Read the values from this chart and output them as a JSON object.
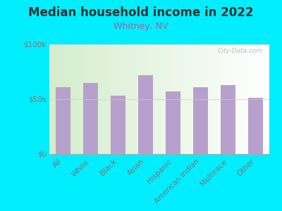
{
  "title": "Median household income in 2022",
  "subtitle": "Whitney, NV",
  "categories": [
    "All",
    "White",
    "Black",
    "Asian",
    "Hispanic",
    "American Indian",
    "Multirace",
    "Other"
  ],
  "values": [
    61000,
    65000,
    53000,
    72000,
    57000,
    61000,
    63000,
    51000
  ],
  "bar_color": "#b8a0cc",
  "background_outer": "#00eeff",
  "background_inner_topleft": "#d4edcc",
  "background_inner_white": "#ffffff",
  "title_color": "#333333",
  "subtitle_color": "#996699",
  "tick_label_color": "#777777",
  "ytick_labels": [
    "$0",
    "$50k",
    "$100k"
  ],
  "ytick_values": [
    0,
    50000,
    100000
  ],
  "ylim": [
    0,
    100000
  ],
  "watermark": "City-Data.com",
  "title_fontsize": 12,
  "subtitle_fontsize": 9,
  "tick_fontsize": 7.5
}
